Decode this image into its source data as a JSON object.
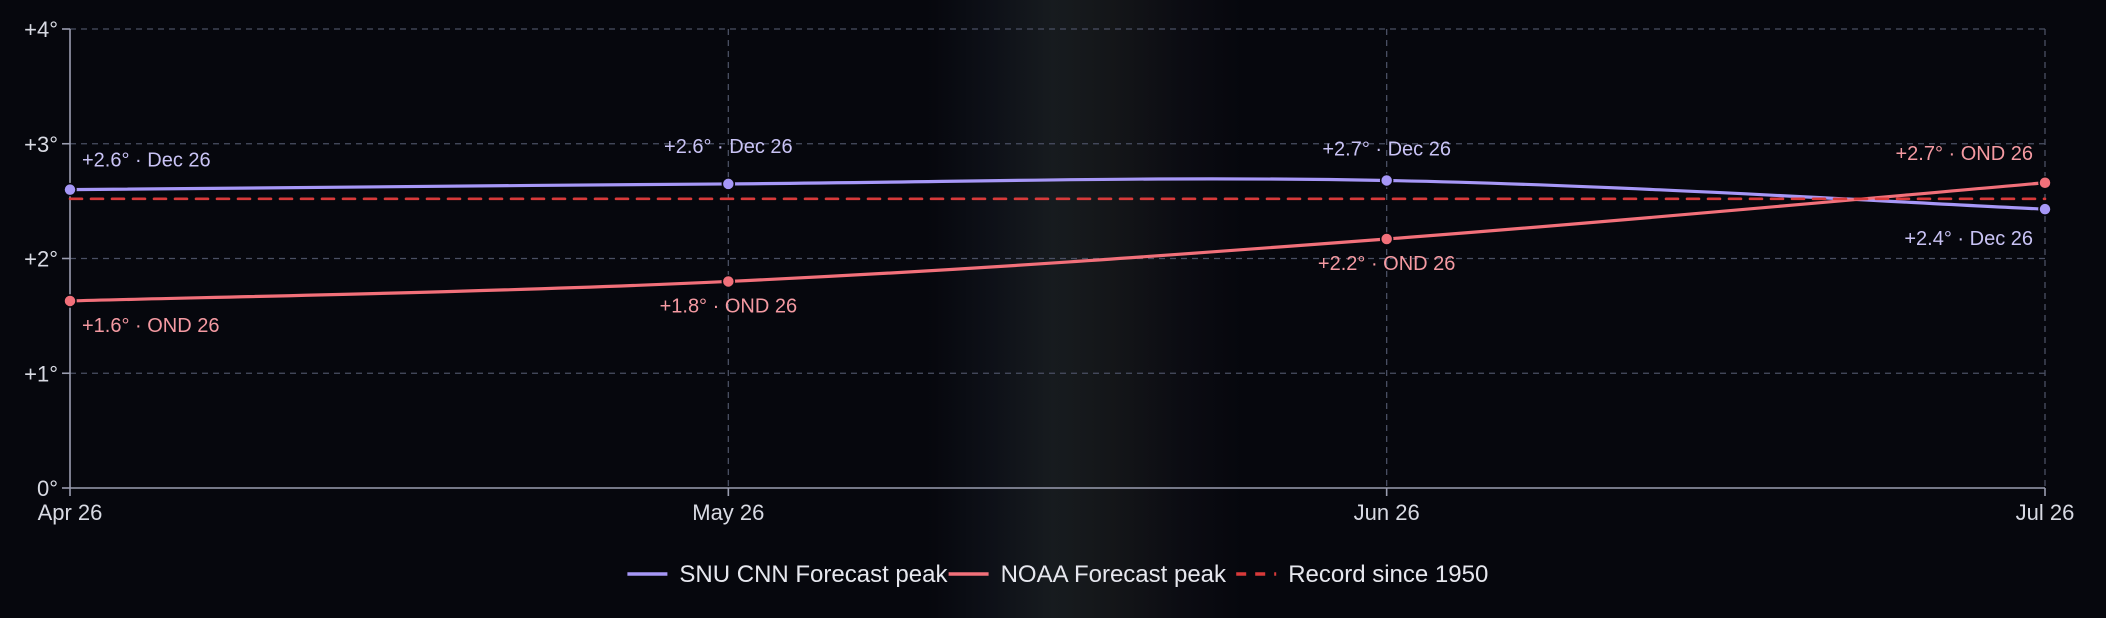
{
  "chart_data": {
    "type": "line",
    "x": [
      "Apr 26",
      "May 26",
      "Jun 26",
      "Jul 26"
    ],
    "ylim": [
      0,
      4
    ],
    "y_ticks": [
      0,
      1,
      2,
      3,
      4
    ],
    "y_tick_labels": [
      "0°",
      "+1°",
      "+2°",
      "+3°",
      "+4°"
    ],
    "grid": true,
    "legend_position": "bottom-center",
    "series": [
      {
        "name": "SNU CNN Forecast peak",
        "color": "#a697f7",
        "style": "solid",
        "values": [
          2.6,
          2.65,
          2.68,
          2.43
        ],
        "labels": [
          "+2.6° · Dec 26",
          "+2.6° · Dec 26",
          "+2.7° · Dec 26",
          "+2.4° · Dec 26"
        ]
      },
      {
        "name": "NOAA Forecast peak",
        "color": "#f2707a",
        "style": "solid",
        "values": [
          1.63,
          1.8,
          2.17,
          2.66
        ],
        "labels": [
          "+1.6° · OND 26",
          "+1.8° · OND 26",
          "+2.2° · OND 26",
          "+2.7° · OND 26"
        ]
      },
      {
        "name": "Record since 1950",
        "color": "#d83a3a",
        "style": "dashed",
        "values": [
          2.52,
          2.52,
          2.52,
          2.52
        ]
      }
    ]
  }
}
